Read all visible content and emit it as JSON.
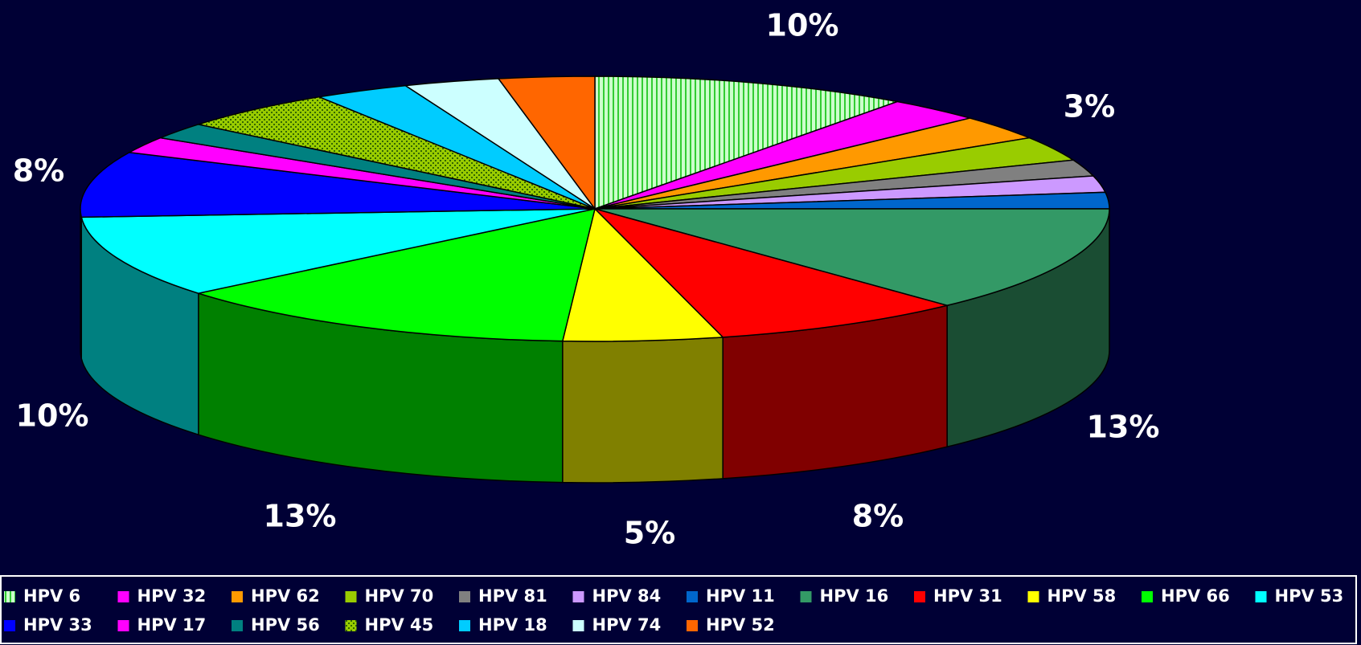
{
  "chart_data": {
    "type": "pie3d",
    "categories": [
      "HPV 6",
      "HPV 32",
      "HPV 62",
      "HPV 70",
      "HPV 81",
      "HPV 84",
      "HPV 11",
      "HPV 16",
      "HPV 31",
      "HPV 58",
      "HPV 66",
      "HPV 53",
      "HPV 33",
      "HPV 17",
      "HPV 56",
      "HPV 45",
      "HPV 18",
      "HPV 74",
      "HPV 52"
    ],
    "values": [
      10,
      3,
      3,
      3,
      2,
      2,
      2,
      13,
      8,
      5,
      13,
      10,
      8,
      2,
      2,
      5,
      3,
      3,
      3
    ],
    "value_labels": [
      "10%",
      null,
      null,
      "3%",
      null,
      null,
      null,
      "13%",
      "8%",
      "5%",
      "13%",
      "10%",
      "8%",
      null,
      null,
      null,
      null,
      null,
      null
    ],
    "colors": [
      "#ccffcc",
      "#ff00ff",
      "#ff9900",
      "#99cc00",
      "#808080",
      "#cc99ff",
      "#0066cc",
      "#339966",
      "#ff0000",
      "#ffff00",
      "#00ff00",
      "#00ffff",
      "#0000ff",
      "#ff00ff",
      "#008080",
      "#99cc00",
      "#00ccff",
      "#ccffff",
      "#ff6600"
    ],
    "patterns": {
      "0": "stripes",
      "15": "dots"
    },
    "legend": "bottom"
  }
}
